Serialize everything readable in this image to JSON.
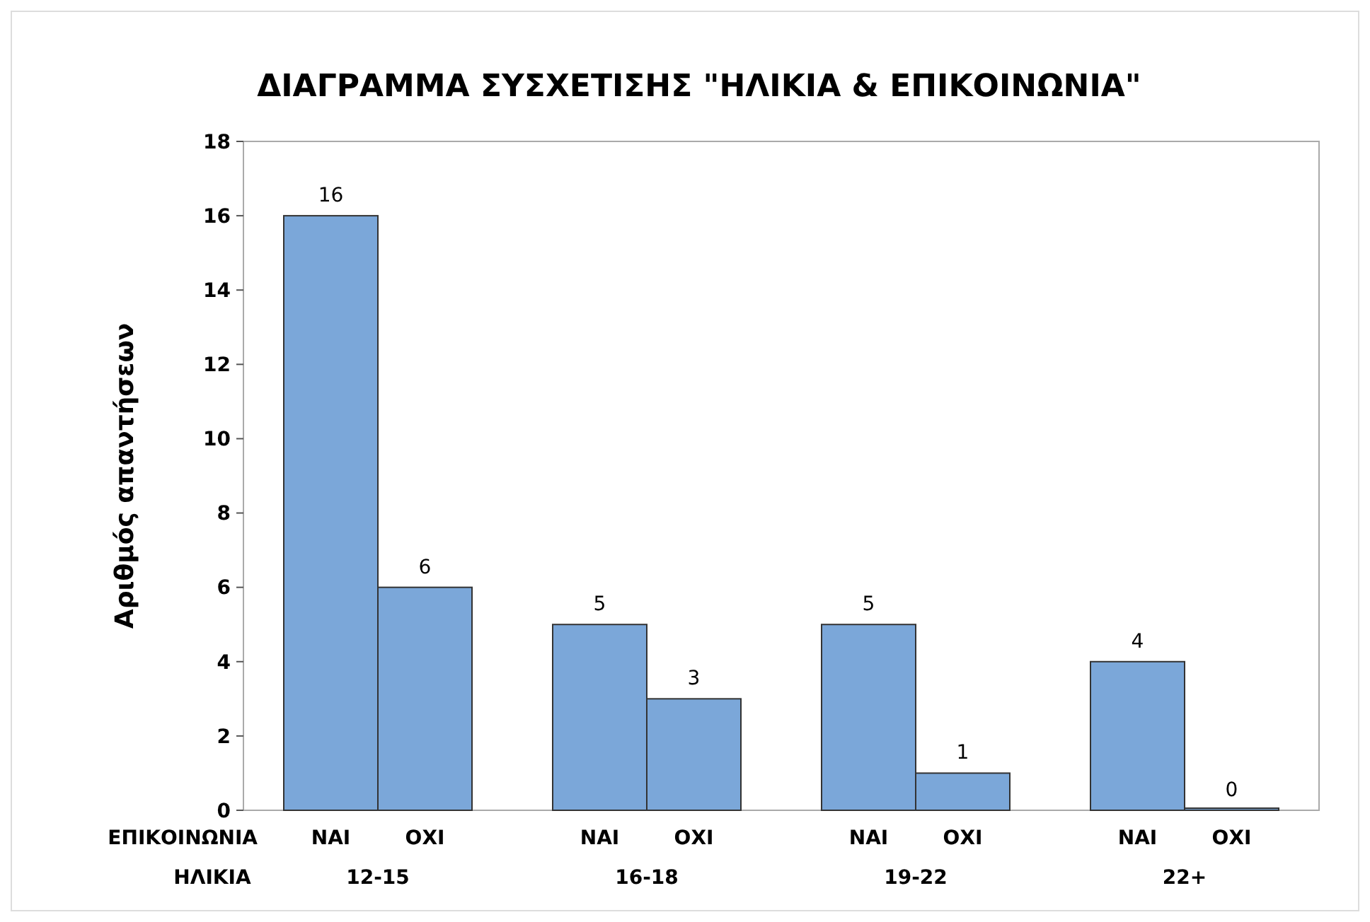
{
  "chart_data": {
    "type": "bar",
    "title": "ΔΙΑΓΡΑΜΜΑ ΣΥΣΧΕΤΙΣΗΣ \"ΗΛΙΚΙΑ & ΕΠΙΚΟΙΝΩΝΙΑ\"",
    "xlabel": "ΗΛΙΚΙΑ",
    "legend_title": "ΕΠΙΚΟΙΝΩΝΙΑ",
    "ylabel": "Αριθμός απαντήσεων",
    "categories": [
      "12-15",
      "16-18",
      "19-22",
      "22+"
    ],
    "series": [
      {
        "name": "ΝΑΙ",
        "color": "#7ba7d9",
        "values": [
          16,
          5,
          5,
          4
        ]
      },
      {
        "name": "ΟΧΙ",
        "color": "#7ba7d9",
        "values": [
          6,
          3,
          1,
          0
        ]
      }
    ],
    "ylim": [
      0,
      18
    ],
    "yticks": [
      0,
      2,
      4,
      6,
      8,
      10,
      12,
      14,
      16,
      18
    ],
    "data_labels": true,
    "grid": false
  }
}
